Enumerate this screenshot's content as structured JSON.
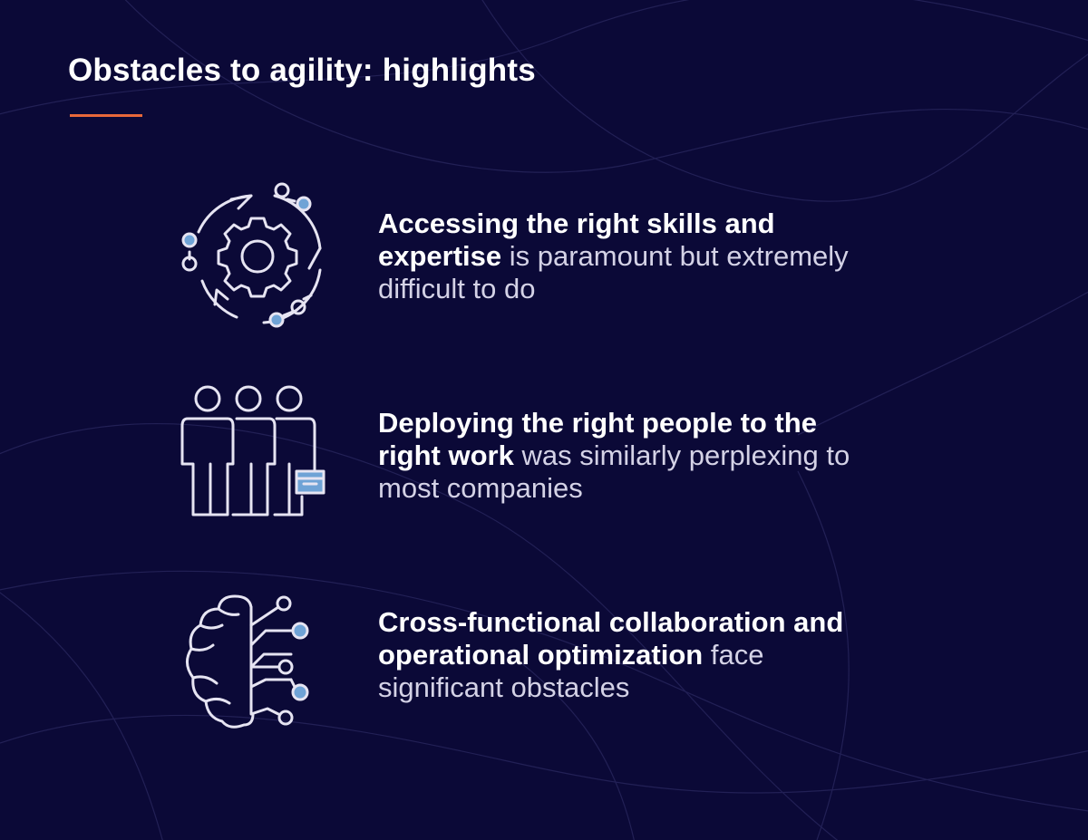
{
  "title": "Obstacles to agility: highlights",
  "colors": {
    "background": "#0b0937",
    "accent": "#e8683a",
    "icon_stroke": "#e6e4f2",
    "icon_fill": "#6fa3d6"
  },
  "items": [
    {
      "icon": "gear-cycle-icon",
      "bold": "Accessing the right skills and expertise",
      "rest": " is paramount but extremely difficult to do"
    },
    {
      "icon": "people-group-icon",
      "bold": "Deploying the right people to the right work",
      "rest": " was similarly perplexing to most companies"
    },
    {
      "icon": "brain-network-icon",
      "bold": "Cross-functional collaboration and operational optimization",
      "rest": " face significant obstacles"
    }
  ]
}
